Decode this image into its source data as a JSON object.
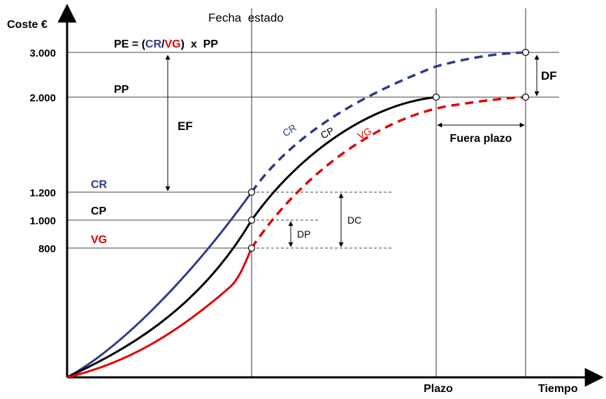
{
  "axes": {
    "y_title": "Coste €",
    "x_title": "Tiempo",
    "y_ticks": [
      "3.000",
      "2.000",
      "1.200",
      "1.000",
      "800"
    ],
    "x_ticks": [
      "Plazo"
    ]
  },
  "status_date_label": "Fecha  estado",
  "formula": {
    "lhs": "PE = (",
    "cr": "CR",
    "slash": "/",
    "vg": "VG",
    "rhs": ")  x  PP"
  },
  "left_labels": {
    "pp": "PP",
    "ef": "EF",
    "cr": "CR",
    "cp": "CP",
    "vg": "VG"
  },
  "curve_labels": {
    "cr": "CR",
    "cp": "CP",
    "vg": "VG"
  },
  "measures": {
    "df": "DF",
    "dc": "DC",
    "dp": "DP",
    "fuera_plazo": "Fuera plazo"
  },
  "colors": {
    "cr": "#2e3a8c",
    "cp": "#000000",
    "vg": "#e00000",
    "axis": "#000000"
  }
}
